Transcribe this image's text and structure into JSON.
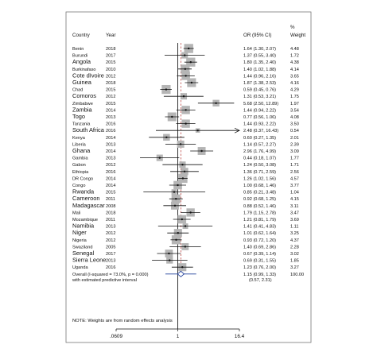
{
  "header": {
    "country": "Country",
    "year": "Year",
    "or_ci": "OR (95% CI)",
    "weight_pct": "%",
    "weight": "Weight"
  },
  "chart_data": {
    "type": "forest",
    "xaxis": {
      "scale": "log",
      "ticks": [
        0.0609,
        1,
        16.4
      ],
      "tick_labels": [
        ".0609",
        "1",
        "16.4"
      ],
      "range": [
        0.0609,
        16.4
      ]
    },
    "rows": [
      {
        "country": "Benin",
        "year": "2018",
        "or": 1.64,
        "lo": 1.3,
        "hi": 2.07,
        "ci_text": "1.64 (1.30, 2.07)",
        "weight": "4.48",
        "big": false
      },
      {
        "country": "Burundi",
        "year": "2017",
        "or": 1.37,
        "lo": 0.55,
        "hi": 3.4,
        "ci_text": "1.37 (0.55, 3.40)",
        "weight": "1.72",
        "big": false
      },
      {
        "country": "Angola",
        "year": "2015",
        "or": 1.8,
        "lo": 1.35,
        "hi": 2.4,
        "ci_text": "1.80 (1.35, 2.40)",
        "weight": "4.38",
        "big": true
      },
      {
        "country": "Burkinafaso",
        "year": "2010",
        "or": 1.4,
        "lo": 1.02,
        "hi": 1.88,
        "ci_text": "1.40 (1.02, 1.88)",
        "weight": "4.14",
        "big": false
      },
      {
        "country": "Cote dIvoire",
        "year": "2012",
        "or": 1.44,
        "lo": 0.96,
        "hi": 2.16,
        "ci_text": "1.44 (0.96, 2.16)",
        "weight": "3.65",
        "big": true
      },
      {
        "country": "Guinea",
        "year": "2018",
        "or": 1.87,
        "lo": 1.38,
        "hi": 2.53,
        "ci_text": "1.87 (1.38, 2.53)",
        "weight": "4.16",
        "big": true
      },
      {
        "country": "Chad",
        "year": "2015",
        "or": 0.59,
        "lo": 0.45,
        "hi": 0.76,
        "ci_text": "0.59 (0.45, 0.76)",
        "weight": "4.29",
        "big": false
      },
      {
        "country": "Comoros",
        "year": "2012",
        "or": 1.31,
        "lo": 0.53,
        "hi": 3.21,
        "ci_text": "1.31 (0.53, 3.21)",
        "weight": "1.75",
        "big": true
      },
      {
        "country": "Zimbabwe",
        "year": "2015",
        "or": 5.68,
        "lo": 2.5,
        "hi": 12.89,
        "ci_text": "5.68 (2.50, 12.89)",
        "weight": "1.97",
        "big": false
      },
      {
        "country": "Zambia",
        "year": "2014",
        "or": 1.44,
        "lo": 0.94,
        "hi": 2.22,
        "ci_text": "1.44 (0.94, 2.22)",
        "weight": "3.54",
        "big": true
      },
      {
        "country": "Togo",
        "year": "2013",
        "or": 0.77,
        "lo": 0.56,
        "hi": 1.06,
        "ci_text": "0.77 (0.56, 1.06)",
        "weight": "4.08",
        "big": true
      },
      {
        "country": "Tanzania",
        "year": "2016",
        "or": 1.44,
        "lo": 0.93,
        "hi": 2.22,
        "ci_text": "1.44 (0.93, 2.22)",
        "weight": "3.50",
        "big": false
      },
      {
        "country": "South Africa",
        "year": "2016",
        "or": 2.48,
        "lo": 0.37,
        "hi": 16.43,
        "ci_text": "2.48 (0.37, 16.43)",
        "weight": "0.54",
        "big": true,
        "arrow": true
      },
      {
        "country": "Kenya",
        "year": "2014",
        "or": 0.6,
        "lo": 0.27,
        "hi": 1.35,
        "ci_text": "0.60 (0.27, 1.35)",
        "weight": "2.01",
        "big": false
      },
      {
        "country": "Liberia",
        "year": "2013",
        "or": 1.14,
        "lo": 0.57,
        "hi": 2.27,
        "ci_text": "1.14 (0.57, 2.27)",
        "weight": "2.39",
        "big": false
      },
      {
        "country": "Ghana",
        "year": "2014",
        "or": 2.96,
        "lo": 1.76,
        "hi": 4.99,
        "ci_text": "2.96 (1.76, 4.99)",
        "weight": "3.09",
        "big": true
      },
      {
        "country": "Gambia",
        "year": "2013",
        "or": 0.44,
        "lo": 0.18,
        "hi": 1.07,
        "ci_text": "0.44 (0.18, 1.07)",
        "weight": "1.77",
        "big": false
      },
      {
        "country": "Gabon",
        "year": "2012",
        "or": 1.24,
        "lo": 0.5,
        "hi": 3.08,
        "ci_text": "1.24 (0.50, 3.08)",
        "weight": "1.71",
        "big": false
      },
      {
        "country": "Ethiopia",
        "year": "2016",
        "or": 1.36,
        "lo": 0.71,
        "hi": 2.59,
        "ci_text": "1.36 (0.71, 2.59)",
        "weight": "2.56",
        "big": false
      },
      {
        "country": "DR Congo",
        "year": "2014",
        "or": 1.26,
        "lo": 1.02,
        "hi": 1.56,
        "ci_text": "1.26 (1.02, 1.56)",
        "weight": "4.57",
        "big": false
      },
      {
        "country": "Congo",
        "year": "2014",
        "or": 1.0,
        "lo": 0.68,
        "hi": 1.46,
        "ci_text": "1.00 (0.68, 1.46)",
        "weight": "3.77",
        "big": false
      },
      {
        "country": "Rwanda",
        "year": "2015",
        "or": 0.85,
        "lo": 0.21,
        "hi": 3.48,
        "ci_text": "0.85 (0.21, 3.48)",
        "weight": "1.04",
        "big": true
      },
      {
        "country": "Cameroon",
        "year": "2011",
        "or": 0.92,
        "lo": 0.68,
        "hi": 1.25,
        "ci_text": "0.92 (0.68, 1.25)",
        "weight": "4.15",
        "big": true
      },
      {
        "country": "Madagascar",
        "year": "2008",
        "or": 0.88,
        "lo": 0.52,
        "hi": 1.46,
        "ci_text": "0.88 (0.52, 1.46)",
        "weight": "3.11",
        "big": true
      },
      {
        "country": "Mali",
        "year": "2018",
        "or": 1.79,
        "lo": 1.15,
        "hi": 2.78,
        "ci_text": "1.79 (1.15, 2.78)",
        "weight": "3.47",
        "big": false
      },
      {
        "country": "Mozambique",
        "year": "2011",
        "or": 1.21,
        "lo": 0.81,
        "hi": 1.79,
        "ci_text": "1.21 (0.81, 1.79)",
        "weight": "3.69",
        "big": false
      },
      {
        "country": "Namibia",
        "year": "2013",
        "or": 1.41,
        "lo": 0.41,
        "hi": 4.83,
        "ci_text": "1.41 (0.41, 4.83)",
        "weight": "1.11",
        "big": true
      },
      {
        "country": "Niger",
        "year": "2012",
        "or": 1.01,
        "lo": 0.62,
        "hi": 1.64,
        "ci_text": "1.01 (0.62, 1.64)",
        "weight": "3.25",
        "big": true
      },
      {
        "country": "Nigeria",
        "year": "2012",
        "or": 0.93,
        "lo": 0.72,
        "hi": 1.2,
        "ci_text": "0.93 (0.72, 1.20)",
        "weight": "4.37",
        "big": false
      },
      {
        "country": "Swaziland",
        "year": "2005",
        "or": 1.4,
        "lo": 0.69,
        "hi": 2.86,
        "ci_text": "1.40 (0.69, 2.86)",
        "weight": "2.28",
        "big": false
      },
      {
        "country": "Senegal",
        "year": "2017",
        "or": 0.67,
        "lo": 0.39,
        "hi": 1.14,
        "ci_text": "0.67 (0.39, 1.14)",
        "weight": "3.02",
        "big": true
      },
      {
        "country": "Sierra Leone",
        "year": "2013",
        "or": 0.69,
        "lo": 0.31,
        "hi": 1.55,
        "ci_text": "0.69 (0.31, 1.55)",
        "weight": "1.85",
        "big": true
      },
      {
        "country": "Uganda",
        "year": "2016",
        "or": 1.23,
        "lo": 0.76,
        "hi": 2.0,
        "ci_text": "1.23 (0.76, 2.00)",
        "weight": "3.27",
        "big": false
      }
    ],
    "overall": {
      "label": "Overall  (I-squared = 73.0%, p = 0.000)",
      "or": 1.15,
      "lo": 0.99,
      "hi": 1.33,
      "ci_text": "1.15 (0.99, 1.33)",
      "weight": "100.00"
    },
    "predictive": {
      "label": "with estimated predictive interval",
      "lo": 0.57,
      "hi": 2.31,
      "ci_text": "(0.57, 2.31)"
    },
    "note": "NOTE: Weights are from random effects analysis",
    "colors": {
      "box": "#b5b5b5",
      "ci": "#111111",
      "null_line": "#000000",
      "overall_line": "#c0504d",
      "diamond": "#1f3d99",
      "predictive": "#1f3d99"
    }
  }
}
